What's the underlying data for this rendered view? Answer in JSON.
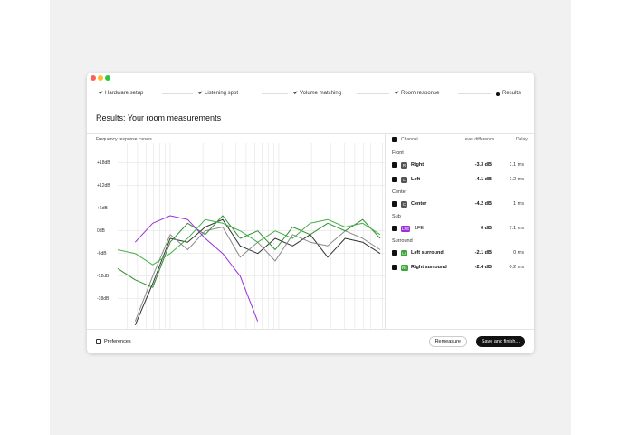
{
  "steps": [
    "Hardware setup",
    "Listening spot",
    "Volume matching",
    "Room response",
    "Results"
  ],
  "title": "Results: Your room measurements",
  "chart": {
    "type": "line",
    "title": "Frequency response curves",
    "ylim": [
      -26,
      22
    ],
    "yticks": [
      {
        "value": 18,
        "label": "+18dB"
      },
      {
        "value": 12,
        "label": "+12dB"
      },
      {
        "value": 6,
        "label": "+6dB"
      },
      {
        "value": 0,
        "label": "0dB"
      },
      {
        "value": -6,
        "label": "-6dB"
      },
      {
        "value": -12,
        "label": "-12dB"
      },
      {
        "value": -18,
        "label": "-18dB"
      }
    ],
    "grid": true,
    "series": [
      {
        "color": "#333333",
        "values": [
          null,
          -25,
          -14,
          -2,
          -3,
          1,
          3,
          -4,
          -6,
          -2,
          -4,
          -1,
          -7,
          -2,
          -3,
          -6
        ]
      },
      {
        "color": "#8a8a8a",
        "values": [
          null,
          -24,
          -12,
          -1,
          -5,
          0,
          1,
          -7,
          -3,
          -8,
          -1,
          -3,
          -4,
          0,
          -2,
          -5
        ]
      },
      {
        "color": "#2f8f2f",
        "values": [
          -10,
          -13,
          -15,
          -3,
          2,
          -1,
          4,
          -2,
          0,
          -5,
          1,
          -1,
          2,
          0,
          3,
          -2
        ]
      },
      {
        "color": "#45b045",
        "values": [
          -5,
          -6,
          -9,
          -6,
          -2,
          3,
          2,
          0,
          -3,
          0,
          -2,
          2,
          3,
          1,
          2,
          -1
        ]
      },
      {
        "color": "#9b30d9",
        "values": [
          null,
          -3,
          2,
          4,
          3,
          -2,
          -6,
          -12,
          -24,
          null,
          null,
          null,
          null,
          null,
          null,
          null
        ]
      }
    ]
  },
  "table": {
    "headers": [
      "Channel",
      "Level difference",
      "Delay"
    ],
    "groups": [
      {
        "name": "Front",
        "rows": [
          {
            "badge": "R",
            "name": "Right",
            "level": "-3.3 dB",
            "delay": "1.1 ms"
          },
          {
            "badge": "L",
            "name": "Left",
            "level": "-4.1 dB",
            "delay": "1.2 ms"
          }
        ]
      },
      {
        "name": "Center",
        "rows": [
          {
            "badge": "C",
            "name": "Center",
            "level": "-4.2 dB",
            "delay": "1 ms"
          }
        ]
      },
      {
        "name": "Sub",
        "rows": [
          {
            "badge": "LFE",
            "name": "LFE",
            "level": "0 dB",
            "delay": "7.1 ms"
          }
        ]
      },
      {
        "name": "Surround",
        "rows": [
          {
            "badge": "Ls",
            "name": "Left surround",
            "level": "-2.1 dB",
            "delay": "0 ms"
          },
          {
            "badge": "Rs",
            "name": "Right surround",
            "level": "-2.4 dB",
            "delay": "0.2 ms"
          }
        ]
      }
    ]
  },
  "footer": {
    "preferences": "Preferences",
    "buttons": [
      "Remeasure",
      "Save and finish..."
    ]
  }
}
